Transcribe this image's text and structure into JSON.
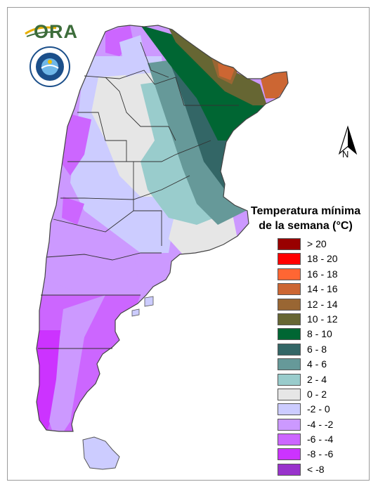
{
  "logo": {
    "text": "ORA"
  },
  "north_arrow": {
    "label": "N"
  },
  "legend": {
    "title_line1": "Temperatura mínima",
    "title_line2": "de la semana (°C)",
    "items": [
      {
        "label": "> 20",
        "color": "#990000"
      },
      {
        "label": "18 - 20",
        "color": "#ff0000"
      },
      {
        "label": "16 - 18",
        "color": "#ff6633"
      },
      {
        "label": "14 - 16",
        "color": "#cc6633"
      },
      {
        "label": "12 - 14",
        "color": "#996633"
      },
      {
        "label": "10 - 12",
        "color": "#666633"
      },
      {
        "label": "8 - 10",
        "color": "#006633"
      },
      {
        "label": "6 - 8",
        "color": "#336666"
      },
      {
        "label": "4 - 6",
        "color": "#669999"
      },
      {
        "label": "2 - 4",
        "color": "#99cccc"
      },
      {
        "label": "0 - 2",
        "color": "#e6e6e6"
      },
      {
        "label": "-2 - 0",
        "color": "#ccccff"
      },
      {
        "label": "-4 - -2",
        "color": "#cc99ff"
      },
      {
        "label": "-6 - -4",
        "color": "#cc66ff"
      },
      {
        "label": "-8 - -6",
        "color": "#cc33ff"
      },
      {
        "label": "< -8",
        "color": "#9933cc"
      }
    ]
  }
}
